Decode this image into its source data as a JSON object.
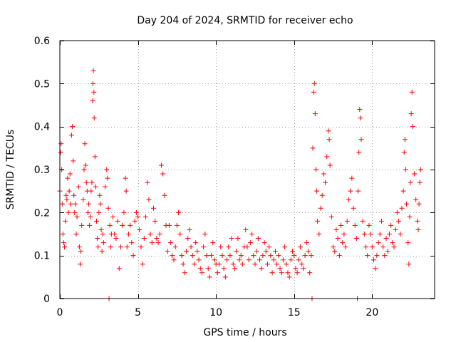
{
  "chart_data": {
    "type": "scatter",
    "title": "Day 204 of 2024, SRMTID for receiver echo",
    "xlabel": "GPS time / hours",
    "ylabel": "SRMTID / TECUs",
    "xlim": [
      0,
      24
    ],
    "ylim": [
      0,
      0.6
    ],
    "x_ticks": [
      0,
      5,
      10,
      15,
      20
    ],
    "x_tick_labels": [
      "0",
      "5",
      "10",
      "15",
      "20"
    ],
    "y_ticks": [
      0,
      0.1,
      0.2,
      0.3,
      0.4,
      0.5,
      0.6
    ],
    "y_tick_labels": [
      "0",
      "0.1",
      "0.2",
      "0.3",
      "0.4",
      "0.5",
      "0.6"
    ],
    "grid": true,
    "marker": "plus",
    "marker_color": "#ff0000",
    "series": [
      {
        "name": "SRMTID",
        "points": [
          [
            0.0,
            0.25
          ],
          [
            0.05,
            0.34
          ],
          [
            0.08,
            0.36
          ],
          [
            0.12,
            0.3
          ],
          [
            0.15,
            0.22
          ],
          [
            0.2,
            0.15
          ],
          [
            0.25,
            0.13
          ],
          [
            0.3,
            0.12
          ],
          [
            0.35,
            0.18
          ],
          [
            0.4,
            0.24
          ],
          [
            0.45,
            0.23
          ],
          [
            0.5,
            0.28
          ],
          [
            0.55,
            0.2
          ],
          [
            0.6,
            0.25
          ],
          [
            0.65,
            0.29
          ],
          [
            0.7,
            0.22
          ],
          [
            0.75,
            0.38
          ],
          [
            0.8,
            0.4
          ],
          [
            0.85,
            0.32
          ],
          [
            0.9,
            0.24
          ],
          [
            0.95,
            0.2
          ],
          [
            1.0,
            0.22
          ],
          [
            1.05,
            0.15
          ],
          [
            1.1,
            0.19
          ],
          [
            1.2,
            0.26
          ],
          [
            1.25,
            0.12
          ],
          [
            1.3,
            0.08
          ],
          [
            1.35,
            0.11
          ],
          [
            1.4,
            0.17
          ],
          [
            1.5,
            0.23
          ],
          [
            1.55,
            0.3
          ],
          [
            1.6,
            0.36
          ],
          [
            1.65,
            0.31
          ],
          [
            1.7,
            0.27
          ],
          [
            1.75,
            0.25
          ],
          [
            1.8,
            0.2
          ],
          [
            1.85,
            0.22
          ],
          [
            1.9,
            0.17
          ],
          [
            1.95,
            0.19
          ],
          [
            2.0,
            0.25
          ],
          [
            2.05,
            0.27
          ],
          [
            2.1,
            0.46
          ],
          [
            2.12,
            0.5
          ],
          [
            2.15,
            0.53
          ],
          [
            2.18,
            0.48
          ],
          [
            2.2,
            0.42
          ],
          [
            2.25,
            0.33
          ],
          [
            2.3,
            0.26
          ],
          [
            2.35,
            0.18
          ],
          [
            2.4,
            0.14
          ],
          [
            2.45,
            0.12
          ],
          [
            2.5,
            0.2
          ],
          [
            2.55,
            0.24
          ],
          [
            2.6,
            0.22
          ],
          [
            2.65,
            0.16
          ],
          [
            2.7,
            0.11
          ],
          [
            2.75,
            0.15
          ],
          [
            2.8,
            0.13
          ],
          [
            2.9,
            0.26
          ],
          [
            3.0,
            0.3
          ],
          [
            3.05,
            0.28
          ],
          [
            3.1,
            0.21
          ],
          [
            3.15,
            0.0
          ],
          [
            3.2,
            0.17
          ],
          [
            3.25,
            0.12
          ],
          [
            3.3,
            0.15
          ],
          [
            3.4,
            0.19
          ],
          [
            3.5,
            0.15
          ],
          [
            3.6,
            0.14
          ],
          [
            3.7,
            0.18
          ],
          [
            3.8,
            0.07
          ],
          [
            3.9,
            0.12
          ],
          [
            4.0,
            0.17
          ],
          [
            4.1,
            0.2
          ],
          [
            4.2,
            0.28
          ],
          [
            4.25,
            0.25
          ],
          [
            4.3,
            0.12
          ],
          [
            4.4,
            0.15
          ],
          [
            4.5,
            0.17
          ],
          [
            4.6,
            0.13
          ],
          [
            4.7,
            0.1
          ],
          [
            4.8,
            0.18
          ],
          [
            4.9,
            0.2
          ],
          [
            5.0,
            0.19
          ],
          [
            5.1,
            0.16
          ],
          [
            5.2,
            0.12
          ],
          [
            5.3,
            0.08
          ],
          [
            5.4,
            0.14
          ],
          [
            5.5,
            0.19
          ],
          [
            5.6,
            0.27
          ],
          [
            5.7,
            0.23
          ],
          [
            5.8,
            0.15
          ],
          [
            5.9,
            0.13
          ],
          [
            6.0,
            0.21
          ],
          [
            6.1,
            0.18
          ],
          [
            6.2,
            0.14
          ],
          [
            6.3,
            0.13
          ],
          [
            6.4,
            0.15
          ],
          [
            6.5,
            0.31
          ],
          [
            6.6,
            0.29
          ],
          [
            6.7,
            0.24
          ],
          [
            6.8,
            0.17
          ],
          [
            6.9,
            0.11
          ],
          [
            7.0,
            0.17
          ],
          [
            7.1,
            0.13
          ],
          [
            7.2,
            0.1
          ],
          [
            7.3,
            0.09
          ],
          [
            7.4,
            0.12
          ],
          [
            7.5,
            0.17
          ],
          [
            7.6,
            0.2
          ],
          [
            7.7,
            0.15
          ],
          [
            7.8,
            0.1
          ],
          [
            7.9,
            0.08
          ],
          [
            8.0,
            0.06
          ],
          [
            8.1,
            0.11
          ],
          [
            8.2,
            0.14
          ],
          [
            8.3,
            0.16
          ],
          [
            8.4,
            0.12
          ],
          [
            8.5,
            0.1
          ],
          [
            8.6,
            0.08
          ],
          [
            8.7,
            0.13
          ],
          [
            8.8,
            0.11
          ],
          [
            8.9,
            0.09
          ],
          [
            9.0,
            0.07
          ],
          [
            9.1,
            0.06
          ],
          [
            9.2,
            0.12
          ],
          [
            9.3,
            0.15
          ],
          [
            9.4,
            0.1
          ],
          [
            9.5,
            0.07
          ],
          [
            9.6,
            0.05
          ],
          [
            9.7,
            0.1
          ],
          [
            9.8,
            0.13
          ],
          [
            9.9,
            0.09
          ],
          [
            10.0,
            0.08
          ],
          [
            10.1,
            0.06
          ],
          [
            10.2,
            0.08
          ],
          [
            10.3,
            0.12
          ],
          [
            10.4,
            0.1
          ],
          [
            10.5,
            0.07
          ],
          [
            10.6,
            0.05
          ],
          [
            10.7,
            0.09
          ],
          [
            10.8,
            0.12
          ],
          [
            10.9,
            0.1
          ],
          [
            11.0,
            0.14
          ],
          [
            11.1,
            0.08
          ],
          [
            11.2,
            0.07
          ],
          [
            11.3,
            0.11
          ],
          [
            11.4,
            0.14
          ],
          [
            11.5,
            0.09
          ],
          [
            11.6,
            0.1
          ],
          [
            11.7,
            0.08
          ],
          [
            11.8,
            0.12
          ],
          [
            11.9,
            0.16
          ],
          [
            12.0,
            0.12
          ],
          [
            12.1,
            0.09
          ],
          [
            12.2,
            0.13
          ],
          [
            12.3,
            0.15
          ],
          [
            12.4,
            0.1
          ],
          [
            12.5,
            0.08
          ],
          [
            12.6,
            0.11
          ],
          [
            12.7,
            0.14
          ],
          [
            12.8,
            0.09
          ],
          [
            12.9,
            0.07
          ],
          [
            13.0,
            0.1
          ],
          [
            13.1,
            0.13
          ],
          [
            13.2,
            0.11
          ],
          [
            13.3,
            0.08
          ],
          [
            13.4,
            0.12
          ],
          [
            13.5,
            0.1
          ],
          [
            13.6,
            0.06
          ],
          [
            13.7,
            0.09
          ],
          [
            13.8,
            0.11
          ],
          [
            13.9,
            0.08
          ],
          [
            14.0,
            0.1
          ],
          [
            14.1,
            0.07
          ],
          [
            14.2,
            0.06
          ],
          [
            14.3,
            0.09
          ],
          [
            14.4,
            0.12
          ],
          [
            14.5,
            0.08
          ],
          [
            14.6,
            0.06
          ],
          [
            14.7,
            0.05
          ],
          [
            14.8,
            0.09
          ],
          [
            14.9,
            0.11
          ],
          [
            15.0,
            0.1
          ],
          [
            15.1,
            0.07
          ],
          [
            15.2,
            0.06
          ],
          [
            15.3,
            0.09
          ],
          [
            15.4,
            0.12
          ],
          [
            15.5,
            0.08
          ],
          [
            15.6,
            0.07
          ],
          [
            15.7,
            0.1
          ],
          [
            15.8,
            0.13
          ],
          [
            15.9,
            0.11
          ],
          [
            16.0,
            0.06
          ],
          [
            16.1,
            0.1
          ],
          [
            16.15,
            0.0
          ],
          [
            16.2,
            0.35
          ],
          [
            16.25,
            0.48
          ],
          [
            16.3,
            0.5
          ],
          [
            16.35,
            0.43
          ],
          [
            16.4,
            0.3
          ],
          [
            16.45,
            0.25
          ],
          [
            16.5,
            0.18
          ],
          [
            16.6,
            0.15
          ],
          [
            16.7,
            0.21
          ],
          [
            16.8,
            0.24
          ],
          [
            16.9,
            0.29
          ],
          [
            17.0,
            0.27
          ],
          [
            17.1,
            0.33
          ],
          [
            17.2,
            0.39
          ],
          [
            17.25,
            0.37
          ],
          [
            17.3,
            0.31
          ],
          [
            17.4,
            0.19
          ],
          [
            17.5,
            0.12
          ],
          [
            17.6,
            0.11
          ],
          [
            17.7,
            0.16
          ],
          [
            17.8,
            0.14
          ],
          [
            17.9,
            0.1
          ],
          [
            18.0,
            0.17
          ],
          [
            18.1,
            0.13
          ],
          [
            18.2,
            0.15
          ],
          [
            18.3,
            0.12
          ],
          [
            18.4,
            0.18
          ],
          [
            18.5,
            0.23
          ],
          [
            18.6,
            0.25
          ],
          [
            18.7,
            0.28
          ],
          [
            18.8,
            0.21
          ],
          [
            18.9,
            0.17
          ],
          [
            19.0,
            0.14
          ],
          [
            19.05,
            0.0
          ],
          [
            19.1,
            0.25
          ],
          [
            19.15,
            0.34
          ],
          [
            19.2,
            0.44
          ],
          [
            19.25,
            0.42
          ],
          [
            19.3,
            0.37
          ],
          [
            19.4,
            0.18
          ],
          [
            19.5,
            0.15
          ],
          [
            19.6,
            0.12
          ],
          [
            19.7,
            0.1
          ],
          [
            19.8,
            0.17
          ],
          [
            19.9,
            0.15
          ],
          [
            20.0,
            0.12
          ],
          [
            20.1,
            0.09
          ],
          [
            20.2,
            0.07
          ],
          [
            20.3,
            0.1
          ],
          [
            20.4,
            0.13
          ],
          [
            20.5,
            0.15
          ],
          [
            20.6,
            0.18
          ],
          [
            20.7,
            0.12
          ],
          [
            20.8,
            0.1
          ],
          [
            20.9,
            0.14
          ],
          [
            21.0,
            0.11
          ],
          [
            21.1,
            0.15
          ],
          [
            21.2,
            0.17
          ],
          [
            21.3,
            0.13
          ],
          [
            21.4,
            0.12
          ],
          [
            21.5,
            0.16
          ],
          [
            21.6,
            0.2
          ],
          [
            21.7,
            0.18
          ],
          [
            21.8,
            0.15
          ],
          [
            21.9,
            0.21
          ],
          [
            22.0,
            0.25
          ],
          [
            22.05,
            0.34
          ],
          [
            22.1,
            0.37
          ],
          [
            22.15,
            0.3
          ],
          [
            22.2,
            0.22
          ],
          [
            22.3,
            0.13
          ],
          [
            22.35,
            0.08
          ],
          [
            22.4,
            0.19
          ],
          [
            22.45,
            0.27
          ],
          [
            22.5,
            0.43
          ],
          [
            22.55,
            0.48
          ],
          [
            22.6,
            0.4
          ],
          [
            22.7,
            0.29
          ],
          [
            22.8,
            0.23
          ],
          [
            22.9,
            0.18
          ],
          [
            22.95,
            0.16
          ],
          [
            23.0,
            0.22
          ],
          [
            23.05,
            0.27
          ],
          [
            23.1,
            0.3
          ]
        ]
      }
    ]
  }
}
